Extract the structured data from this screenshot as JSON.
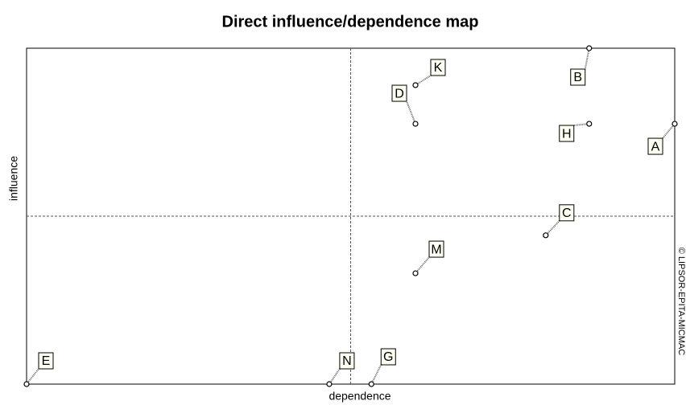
{
  "chart_data": {
    "type": "scatter",
    "title": "Direct influence/dependence map",
    "x_label": "dependence",
    "y_label": "influence",
    "credit": "© LIPSOR-EPITA-MICMAC",
    "labels": [
      "B",
      "K",
      "D",
      "H",
      "A",
      "C",
      "M",
      "E",
      "N",
      "G"
    ],
    "x": [
      86.8,
      60.0,
      60.0,
      86.8,
      100,
      80.1,
      60.0,
      0,
      46.7,
      53.2
    ],
    "values": [
      100,
      89.0,
      77.5,
      77.5,
      77.5,
      44.3,
      33.0,
      0,
      0,
      0
    ],
    "xlim": [
      0,
      100
    ],
    "ylim": [
      0,
      100
    ],
    "x_mean": 50,
    "y_mean": 50,
    "color": "#000000"
  }
}
